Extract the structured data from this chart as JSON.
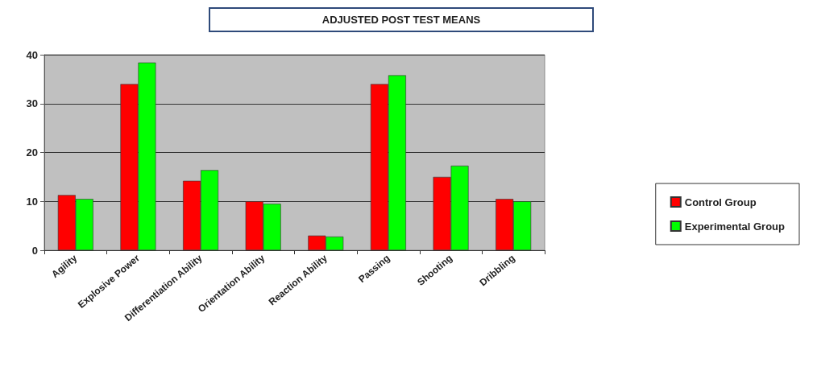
{
  "chart_data": {
    "type": "bar",
    "title": "ADJUSTED POST TEST MEANS",
    "categories": [
      "Agility",
      "Explosive Power",
      "Differentiation Ability",
      "Orientation Ability",
      "Reaction Ability",
      "Passing",
      "Shooting",
      "Dribbling"
    ],
    "series": [
      {
        "name": "Control Group",
        "color": "#ff0000",
        "values": [
          11.3,
          34,
          14.2,
          10,
          3,
          34,
          15,
          10.5
        ]
      },
      {
        "name": "Experimental Group",
        "color": "#00ff00",
        "values": [
          10.5,
          38.4,
          16.4,
          9.5,
          2.8,
          35.8,
          17.3,
          10
        ]
      }
    ],
    "ylim": [
      0,
      40
    ],
    "yticks": [
      0,
      10,
      20,
      30,
      40
    ],
    "grid": "y",
    "legend": "right"
  }
}
